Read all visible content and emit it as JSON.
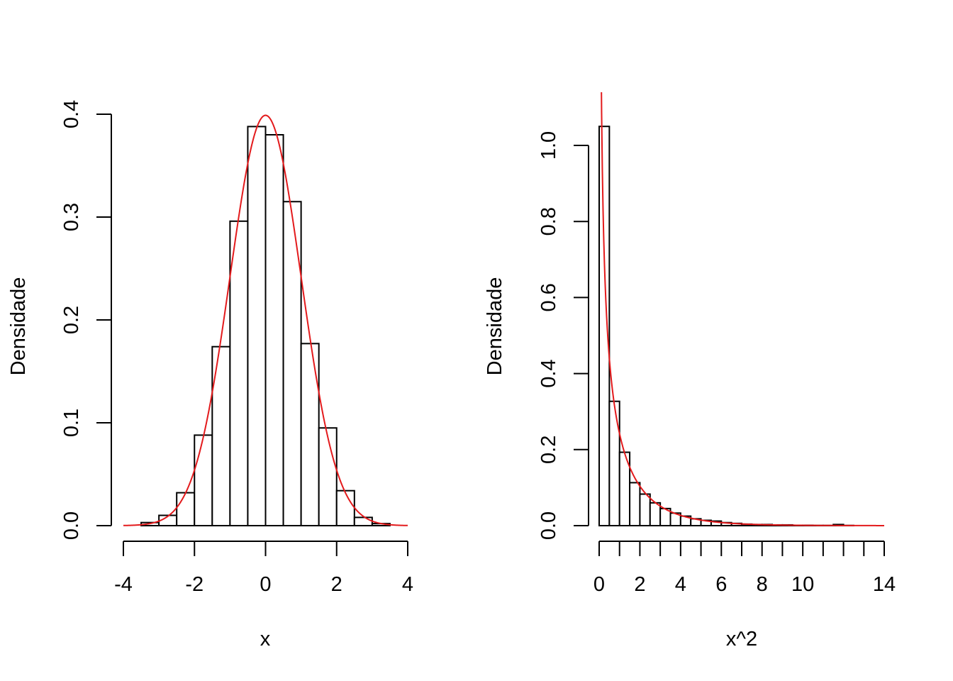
{
  "chart_data": [
    {
      "type": "histogram",
      "xlabel": "x",
      "ylabel": "Densidade",
      "xlim": [
        -4,
        4
      ],
      "ylim": [
        0,
        0.4
      ],
      "x_ticks": [
        -4,
        -2,
        0,
        2,
        4
      ],
      "x_tick_labels": [
        "-4",
        "-2",
        "0",
        "2",
        "4"
      ],
      "y_ticks": [
        0,
        0.1,
        0.2,
        0.3,
        0.4
      ],
      "y_tick_labels": [
        "0.0",
        "0.1",
        "0.2",
        "0.3",
        "0.4"
      ],
      "bin_edges": [
        -3.5,
        -3,
        -2.5,
        -2,
        -1.5,
        -1,
        -0.5,
        0,
        0.5,
        1,
        1.5,
        2,
        2.5,
        3,
        3.5
      ],
      "densities": [
        0.003,
        0.01,
        0.032,
        0.088,
        0.174,
        0.296,
        0.388,
        0.38,
        0.315,
        0.177,
        0.095,
        0.034,
        0.008,
        0.002
      ],
      "curve": {
        "function": "normal_density",
        "mean": 0,
        "sd": 1,
        "range": [
          -4,
          4
        ],
        "color": "#e31a1c"
      },
      "grid": false,
      "legend": "none"
    },
    {
      "type": "histogram",
      "xlabel": "x^2",
      "ylabel": "Densidade",
      "xlim": [
        0,
        14
      ],
      "ylim": [
        0,
        1.0
      ],
      "x_ticks": [
        0,
        1,
        2,
        3,
        4,
        5,
        6,
        7,
        8,
        9,
        10,
        11,
        12,
        13,
        14
      ],
      "x_tick_labels": [
        "0",
        "",
        "2",
        "",
        "4",
        "",
        "6",
        "",
        "8",
        "",
        "10",
        "",
        "",
        "",
        "14"
      ],
      "y_ticks": [
        0,
        0.2,
        0.4,
        0.6,
        0.8,
        1.0
      ],
      "y_tick_labels": [
        "0.0",
        "0.2",
        "0.4",
        "0.6",
        "0.8",
        "1.0"
      ],
      "bin_edges": [
        0,
        0.5,
        1,
        1.5,
        2,
        2.5,
        3,
        3.5,
        4,
        4.5,
        5,
        5.5,
        6,
        6.5,
        7,
        7.5,
        8,
        8.5,
        9,
        9.5,
        10,
        10.5,
        11,
        11.5,
        12,
        12.5,
        13,
        13.5,
        14
      ],
      "densities": [
        1.05,
        0.327,
        0.193,
        0.113,
        0.083,
        0.06,
        0.045,
        0.033,
        0.025,
        0.018,
        0.014,
        0.012,
        0.008,
        0.006,
        0.004,
        0.003,
        0.003,
        0.002,
        0.002,
        0.001,
        0.001,
        0.0005,
        0.0005,
        0.003,
        0.0005,
        0.0,
        0.0,
        0.0
      ],
      "curve": {
        "function": "chisq1_density",
        "range": [
          0.05,
          14
        ],
        "color": "#e31a1c"
      },
      "grid": false,
      "legend": "none"
    }
  ]
}
